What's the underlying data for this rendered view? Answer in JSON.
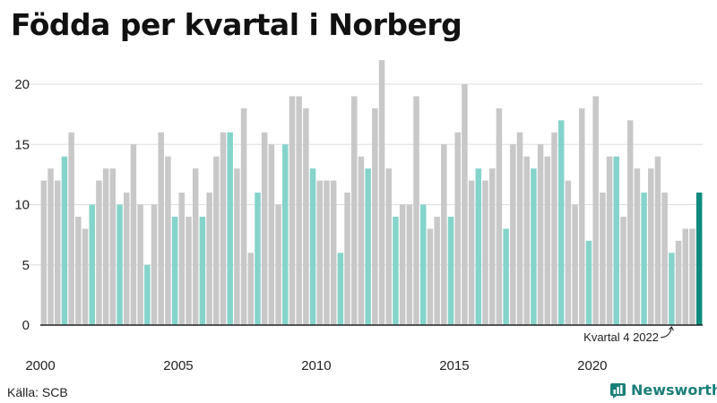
{
  "title": "Födda per kvartal i Norberg",
  "source": "Källa: SCB",
  "brand": {
    "name": "Newsworthy",
    "icon": "newsworthy-logo-icon"
  },
  "colors": {
    "bar_default": "#c8c8c8",
    "bar_q1": "#85d4cb",
    "bar_highlight": "#0f8a7e",
    "grid": "#dddddd",
    "axis": "#222222",
    "brand": "#1b7f79"
  },
  "chart_data": {
    "type": "bar",
    "title": "Födda per kvartal i Norberg",
    "xlabel": "",
    "ylabel": "",
    "ylim": [
      0,
      22
    ],
    "yticks": [
      0,
      5,
      10,
      15,
      20
    ],
    "xtick_labels": [
      "2000",
      "2005",
      "2010",
      "2015",
      "2020"
    ],
    "grid": true,
    "start_year": 2000,
    "values": [
      12,
      13,
      12,
      14,
      16,
      9,
      8,
      10,
      12,
      13,
      13,
      10,
      11,
      15,
      10,
      5,
      10,
      16,
      14,
      9,
      11,
      9,
      13,
      9,
      11,
      14,
      16,
      16,
      13,
      18,
      6,
      11,
      16,
      15,
      10,
      15,
      19,
      19,
      18,
      13,
      12,
      12,
      12,
      6,
      11,
      19,
      14,
      13,
      18,
      22,
      13,
      9,
      10,
      10,
      19,
      10,
      8,
      9,
      15,
      9,
      16,
      20,
      12,
      13,
      12,
      13,
      18,
      8,
      15,
      16,
      14,
      13,
      15,
      14,
      16,
      17,
      12,
      10,
      18,
      7,
      19,
      11,
      14,
      14,
      9,
      17,
      13,
      11,
      13,
      14,
      11,
      6,
      7,
      8,
      8,
      11
    ],
    "annotation": {
      "label": "Kvartal 4 2022",
      "target": "2022 Q4"
    },
    "highlight": {
      "label": "2023 Q4"
    }
  }
}
